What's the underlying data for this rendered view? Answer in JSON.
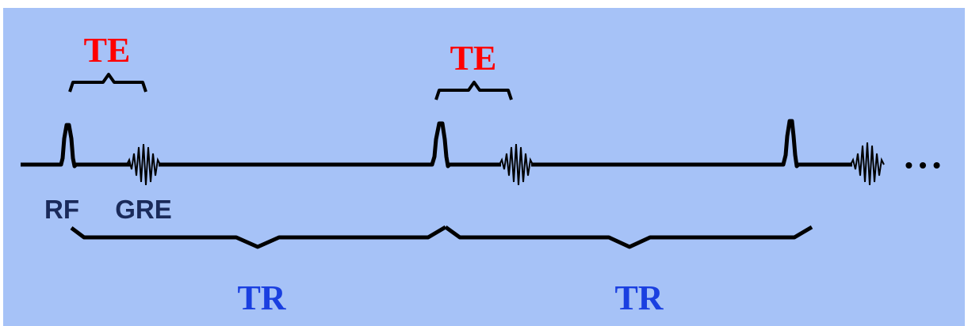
{
  "labels": {
    "te_1": "TE",
    "te_2": "TE",
    "rf": "RF",
    "gre": "GRE",
    "tr_1": "TR",
    "tr_2": "TR",
    "ellipsis": "• • •"
  },
  "colors": {
    "background": "#a6c2f7",
    "te": "#ff0000",
    "tr": "#1a3fe0",
    "rf_gre": "#1a2a5a",
    "trace": "#000000"
  }
}
